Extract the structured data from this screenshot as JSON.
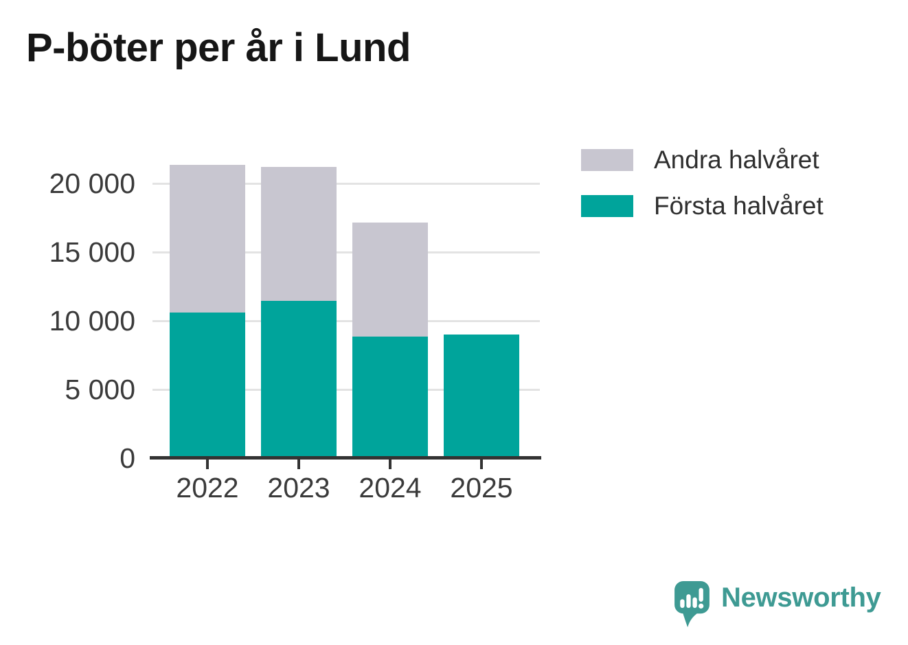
{
  "title": "P-böter per år i Lund",
  "colors": {
    "first_half": "#00a49b",
    "second_half": "#c8c6d0",
    "axis": "#333333",
    "gridline": "#e3e3e3",
    "label_text": "#3a3a3a",
    "title_text": "#161616",
    "logo_teal": "#3e9a93",
    "background": "#ffffff"
  },
  "chart_data": {
    "type": "bar",
    "stacked": true,
    "title": "P-böter per år i Lund",
    "categories": [
      "2022",
      "2023",
      "2024",
      "2025"
    ],
    "series": [
      {
        "name": "Första halvåret",
        "color": "#00a49b",
        "values": [
          10600,
          11450,
          8850,
          9000
        ]
      },
      {
        "name": "Andra halvåret",
        "color": "#c8c6d0",
        "values": [
          10750,
          9750,
          8300,
          0
        ]
      }
    ],
    "totals": [
      21350,
      21200,
      17150,
      9000
    ],
    "xlabel": "",
    "ylabel": "",
    "ylim": [
      0,
      22250
    ],
    "yticks": [
      0,
      5000,
      10000,
      15000,
      20000
    ],
    "ytick_labels": [
      "0",
      "5 000",
      "10 000",
      "15 000",
      "20 000"
    ],
    "grid": true,
    "legend_position": "top-right"
  },
  "legend": {
    "items": [
      {
        "label": "Andra halvåret",
        "color": "#c8c6d0"
      },
      {
        "label": "Första halvåret",
        "color": "#00a49b"
      }
    ]
  },
  "footer": {
    "brand": "Newsworthy"
  }
}
